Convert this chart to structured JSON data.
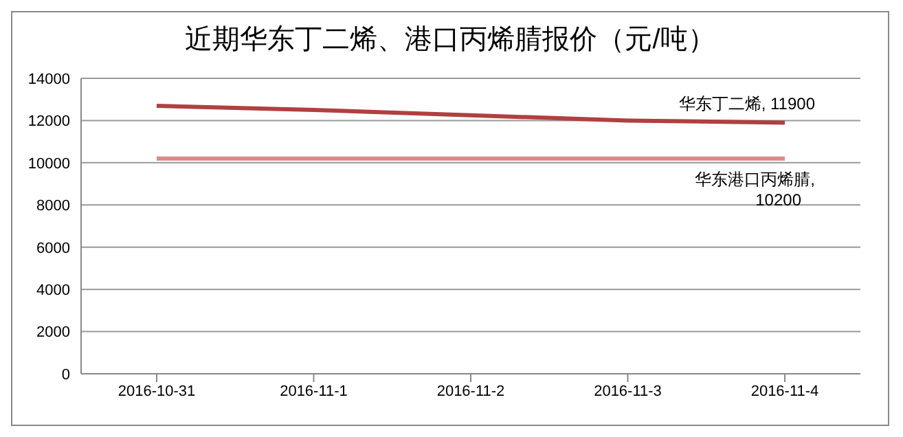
{
  "chart_data": {
    "type": "line",
    "title": "近期华东丁二烯、港口丙烯腈报价（元/吨）",
    "categories": [
      "2016-10-31",
      "2016-11-1",
      "2016-11-2",
      "2016-11-3",
      "2016-11-4"
    ],
    "series": [
      {
        "color": "#b04040",
        "values": [
          12700,
          12500,
          12250,
          12000,
          11900
        ]
      },
      {
        "color": "#d98b8b",
        "values": [
          10200,
          10200,
          10200,
          10200,
          10200
        ]
      }
    ],
    "annotations": [
      {
        "text": "华东丁二烯, 11900",
        "x": "2016-11-4",
        "y": 11900
      },
      {
        "text": "华东港口丙烯腈, 10200",
        "x": "2016-11-4",
        "y": 10200
      }
    ],
    "ylim": [
      0,
      14000
    ],
    "yticks": [
      0,
      2000,
      4000,
      6000,
      8000,
      10000,
      12000,
      14000
    ],
    "grid": "y",
    "legend": false,
    "marker": "none",
    "line_style": "solid"
  }
}
